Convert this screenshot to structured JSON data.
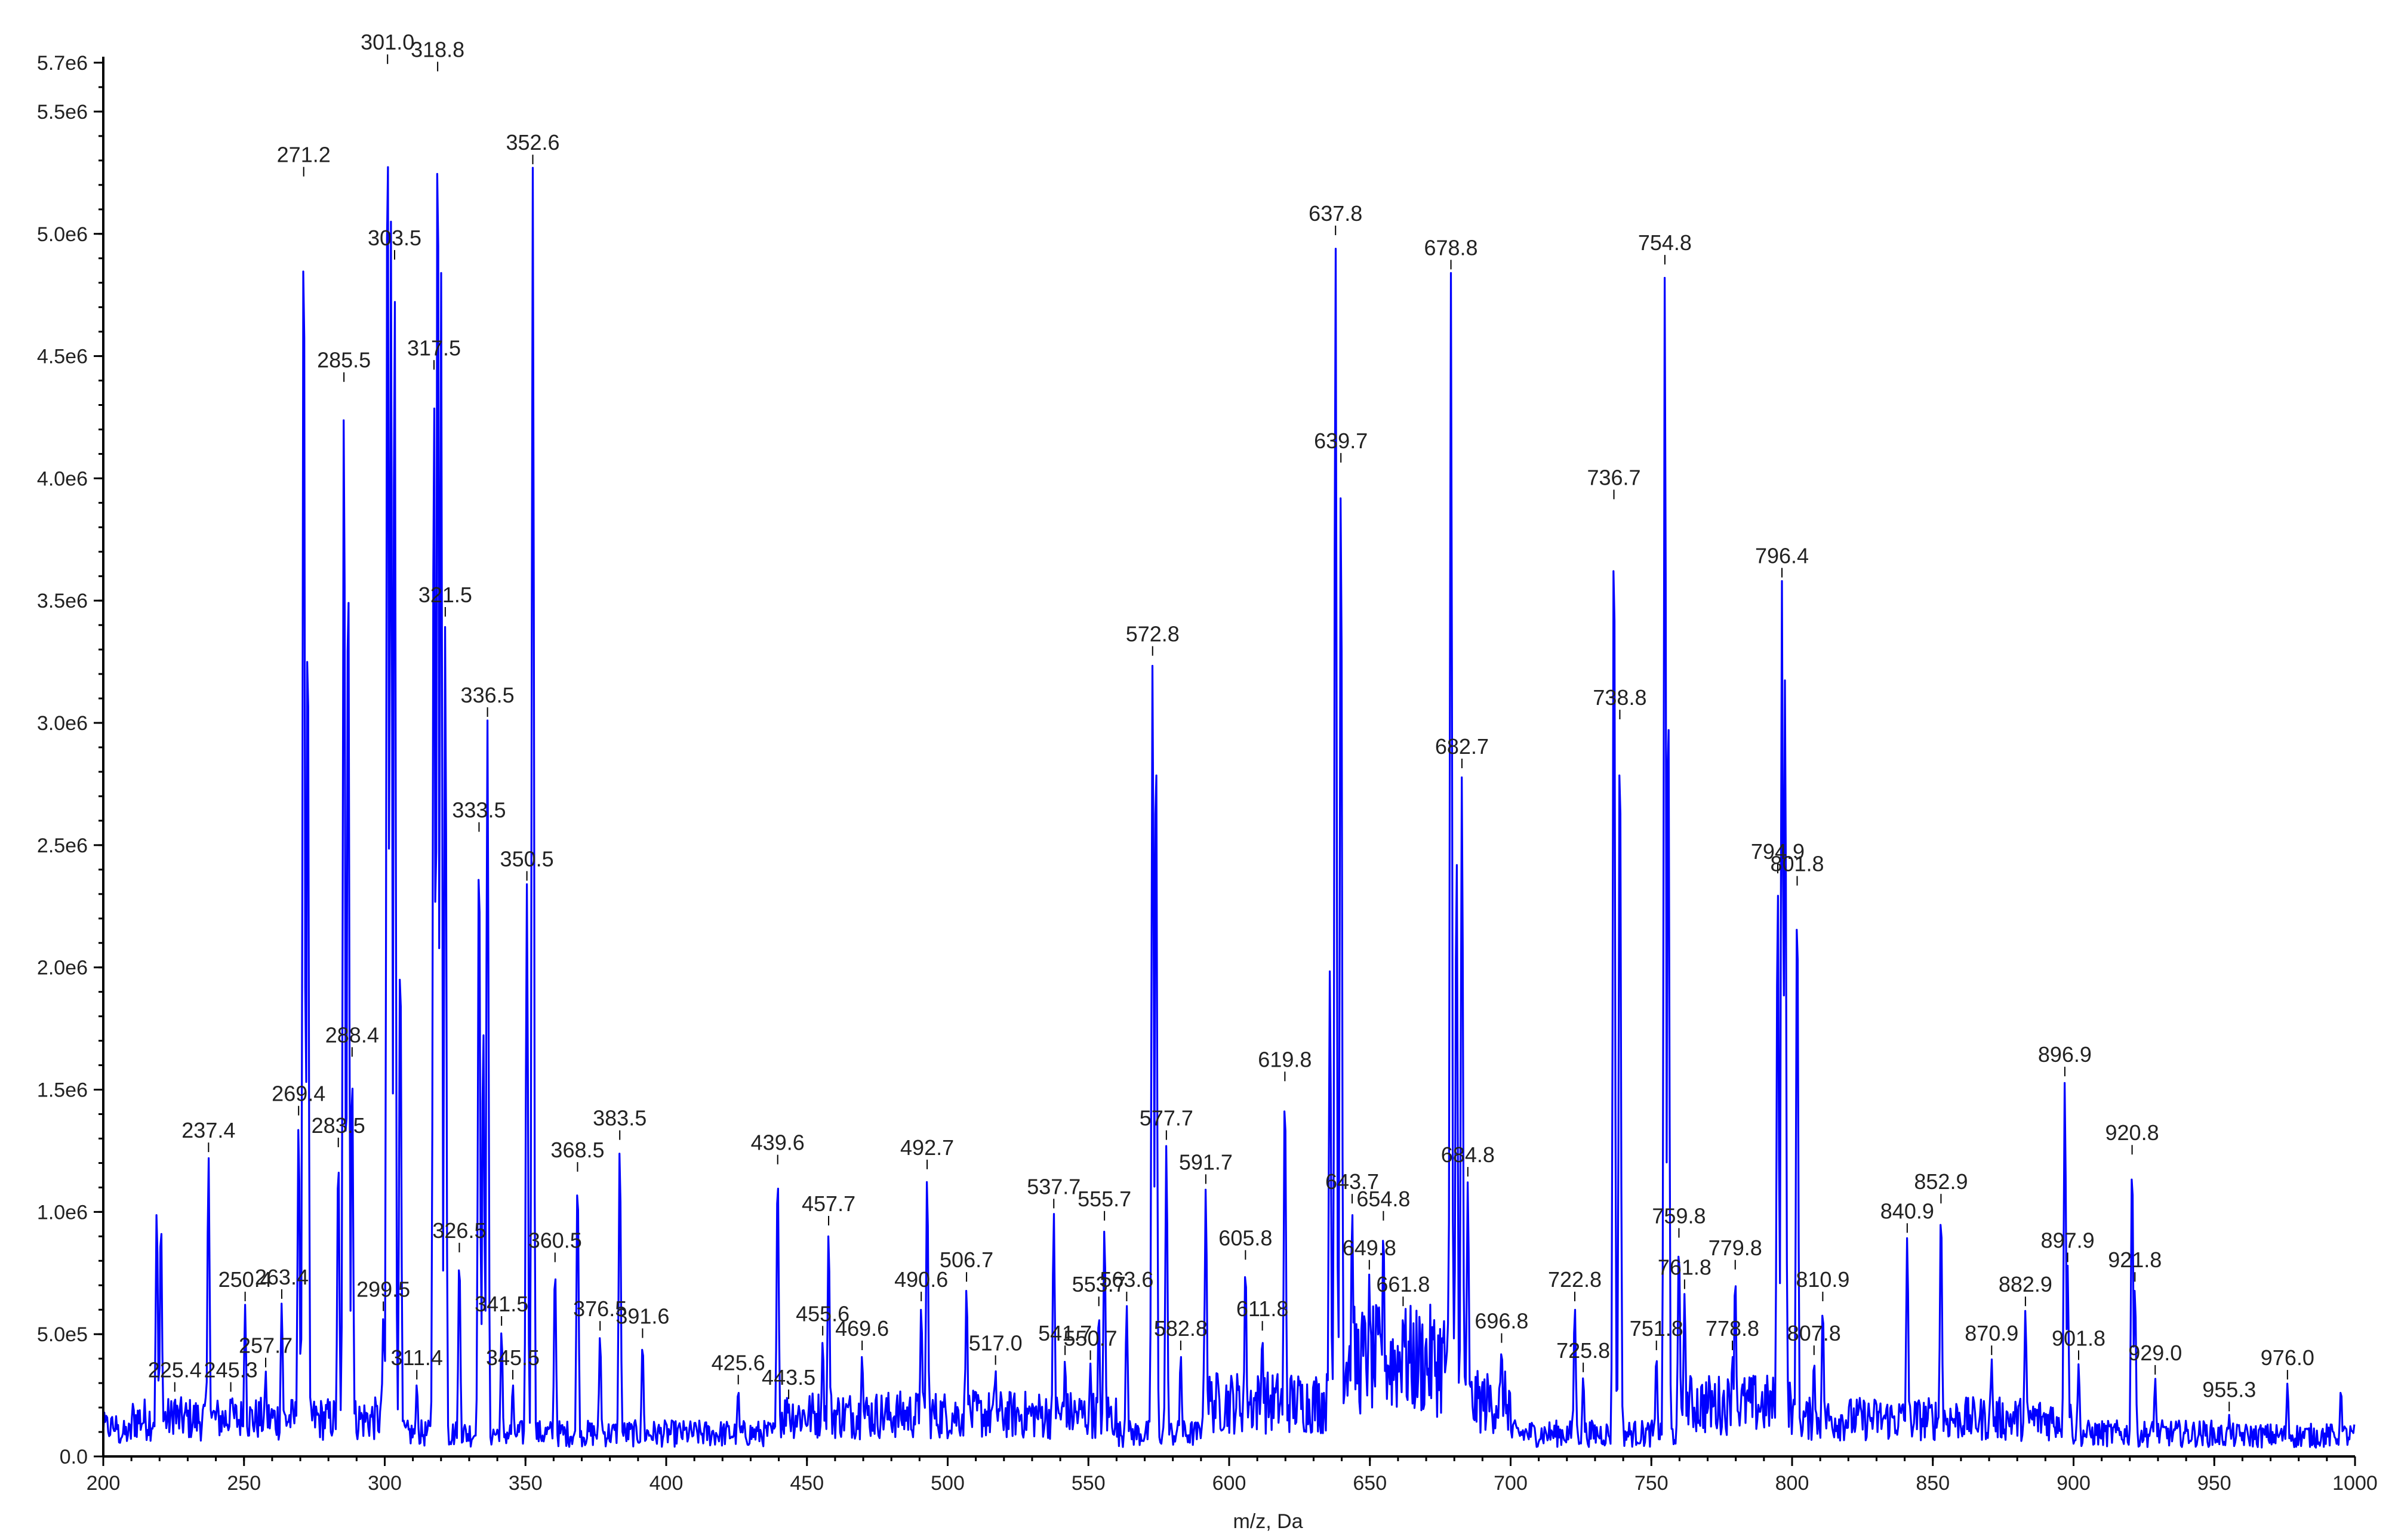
{
  "chart_data": {
    "type": "line",
    "title": "",
    "xlabel": "m/z, Da",
    "ylabel": "",
    "xlim": [
      200,
      1000
    ],
    "ylim": [
      0,
      5700000
    ],
    "grid": false,
    "legend": "none",
    "x_ticks": [
      "200",
      "250",
      "300",
      "350",
      "400",
      "450",
      "500",
      "550",
      "600",
      "650",
      "700",
      "750",
      "800",
      "850",
      "900",
      "950",
      "1000"
    ],
    "y_ticks": [
      "0.0",
      "5.0e5",
      "1.0e6",
      "1.5e6",
      "2.0e6",
      "2.5e6",
      "3.0e6",
      "3.5e6",
      "4.0e6",
      "4.5e6",
      "5.0e6",
      "5.5e6",
      "5.7e6"
    ],
    "series": [
      {
        "color": "#0000ff",
        "peaks": [
          {
            "x": 219.0,
            "y": 1020000,
            "label": ""
          },
          {
            "x": 220.5,
            "y": 980000,
            "label": ""
          },
          {
            "x": 225.4,
            "y": 250000,
            "label": "225.4"
          },
          {
            "x": 237.4,
            "y": 1230000,
            "label": "237.4"
          },
          {
            "x": 245.3,
            "y": 250000,
            "label": "245.3"
          },
          {
            "x": 250.4,
            "y": 620000,
            "label": "250.4"
          },
          {
            "x": 257.7,
            "y": 350000,
            "label": "257.7"
          },
          {
            "x": 263.4,
            "y": 630000,
            "label": "263.4"
          },
          {
            "x": 269.4,
            "y": 1380000,
            "label": "269.4"
          },
          {
            "x": 271.2,
            "y": 5220000,
            "label": "271.2"
          },
          {
            "x": 272.6,
            "y": 3500000,
            "label": ""
          },
          {
            "x": 283.5,
            "y": 1250000,
            "label": "283.5"
          },
          {
            "x": 285.5,
            "y": 4380000,
            "label": "285.5"
          },
          {
            "x": 287.0,
            "y": 3760000,
            "label": ""
          },
          {
            "x": 288.4,
            "y": 1620000,
            "label": "288.4"
          },
          {
            "x": 299.5,
            "y": 580000,
            "label": "299.5"
          },
          {
            "x": 301.0,
            "y": 5680000,
            "label": "301.0"
          },
          {
            "x": 302.2,
            "y": 5050000,
            "label": ""
          },
          {
            "x": 303.5,
            "y": 4880000,
            "label": "303.5"
          },
          {
            "x": 305.5,
            "y": 2100000,
            "label": ""
          },
          {
            "x": 311.4,
            "y": 300000,
            "label": "311.4"
          },
          {
            "x": 317.5,
            "y": 4430000,
            "label": "317.5"
          },
          {
            "x": 318.8,
            "y": 5650000,
            "label": "318.8"
          },
          {
            "x": 320.0,
            "y": 4880000,
            "label": ""
          },
          {
            "x": 321.5,
            "y": 3420000,
            "label": "321.5"
          },
          {
            "x": 326.5,
            "y": 820000,
            "label": "326.5"
          },
          {
            "x": 333.5,
            "y": 2540000,
            "label": "333.5"
          },
          {
            "x": 335.0,
            "y": 1780000,
            "label": ""
          },
          {
            "x": 336.5,
            "y": 3010000,
            "label": "336.5"
          },
          {
            "x": 341.5,
            "y": 520000,
            "label": "341.5"
          },
          {
            "x": 345.5,
            "y": 300000,
            "label": "345.5"
          },
          {
            "x": 350.5,
            "y": 2340000,
            "label": "350.5"
          },
          {
            "x": 352.6,
            "y": 5270000,
            "label": "352.6"
          },
          {
            "x": 360.5,
            "y": 780000,
            "label": "360.5"
          },
          {
            "x": 368.5,
            "y": 1150000,
            "label": "368.5"
          },
          {
            "x": 376.5,
            "y": 500000,
            "label": "376.5"
          },
          {
            "x": 383.5,
            "y": 1280000,
            "label": "383.5"
          },
          {
            "x": 391.6,
            "y": 470000,
            "label": "391.6"
          },
          {
            "x": 425.6,
            "y": 280000,
            "label": "425.6"
          },
          {
            "x": 439.6,
            "y": 1180000,
            "label": "439.6"
          },
          {
            "x": 443.5,
            "y": 220000,
            "label": "443.5"
          },
          {
            "x": 455.6,
            "y": 480000,
            "label": "455.6"
          },
          {
            "x": 457.7,
            "y": 930000,
            "label": "457.7"
          },
          {
            "x": 469.6,
            "y": 420000,
            "label": "469.6"
          },
          {
            "x": 490.6,
            "y": 620000,
            "label": "490.6"
          },
          {
            "x": 492.7,
            "y": 1160000,
            "label": "492.7"
          },
          {
            "x": 506.7,
            "y": 700000,
            "label": "506.7"
          },
          {
            "x": 517.0,
            "y": 360000,
            "label": "517.0"
          },
          {
            "x": 537.7,
            "y": 1000000,
            "label": "537.7"
          },
          {
            "x": 541.7,
            "y": 400000,
            "label": "541.7"
          },
          {
            "x": 550.7,
            "y": 380000,
            "label": "550.7"
          },
          {
            "x": 553.7,
            "y": 600000,
            "label": "553.7"
          },
          {
            "x": 555.7,
            "y": 950000,
            "label": "555.7"
          },
          {
            "x": 563.6,
            "y": 620000,
            "label": "563.6"
          },
          {
            "x": 572.8,
            "y": 3260000,
            "label": "572.8"
          },
          {
            "x": 574.0,
            "y": 3000000,
            "label": ""
          },
          {
            "x": 577.7,
            "y": 1280000,
            "label": "577.7"
          },
          {
            "x": 582.8,
            "y": 420000,
            "label": "582.8"
          },
          {
            "x": 591.7,
            "y": 1100000,
            "label": "591.7"
          },
          {
            "x": 605.8,
            "y": 790000,
            "label": "605.8"
          },
          {
            "x": 611.8,
            "y": 500000,
            "label": "611.8"
          },
          {
            "x": 619.8,
            "y": 1520000,
            "label": "619.8"
          },
          {
            "x": 635.8,
            "y": 2000000,
            "label": ""
          },
          {
            "x": 637.8,
            "y": 4980000,
            "label": "637.8"
          },
          {
            "x": 639.7,
            "y": 4050000,
            "label": "639.7"
          },
          {
            "x": 643.7,
            "y": 1020000,
            "label": "643.7"
          },
          {
            "x": 649.8,
            "y": 750000,
            "label": "649.8"
          },
          {
            "x": 654.8,
            "y": 950000,
            "label": "654.8"
          },
          {
            "x": 661.8,
            "y": 600000,
            "label": "661.8"
          },
          {
            "x": 678.8,
            "y": 4840000,
            "label": "678.8"
          },
          {
            "x": 680.8,
            "y": 2500000,
            "label": ""
          },
          {
            "x": 682.7,
            "y": 2800000,
            "label": "682.7"
          },
          {
            "x": 684.8,
            "y": 1130000,
            "label": "684.8"
          },
          {
            "x": 696.8,
            "y": 450000,
            "label": "696.8"
          },
          {
            "x": 722.8,
            "y": 620000,
            "label": "722.8"
          },
          {
            "x": 725.8,
            "y": 330000,
            "label": "725.8"
          },
          {
            "x": 736.7,
            "y": 3900000,
            "label": "736.7"
          },
          {
            "x": 738.8,
            "y": 3000000,
            "label": "738.8"
          },
          {
            "x": 751.8,
            "y": 420000,
            "label": "751.8"
          },
          {
            "x": 754.8,
            "y": 4860000,
            "label": "754.8"
          },
          {
            "x": 756.0,
            "y": 3200000,
            "label": ""
          },
          {
            "x": 759.8,
            "y": 880000,
            "label": "759.8"
          },
          {
            "x": 761.8,
            "y": 670000,
            "label": "761.8"
          },
          {
            "x": 778.8,
            "y": 420000,
            "label": "778.8"
          },
          {
            "x": 779.8,
            "y": 750000,
            "label": "779.8"
          },
          {
            "x": 794.9,
            "y": 2370000,
            "label": "794.9"
          },
          {
            "x": 796.4,
            "y": 3580000,
            "label": "796.4"
          },
          {
            "x": 797.5,
            "y": 3200000,
            "label": ""
          },
          {
            "x": 801.8,
            "y": 2320000,
            "label": "801.8"
          },
          {
            "x": 807.8,
            "y": 400000,
            "label": "807.8"
          },
          {
            "x": 810.9,
            "y": 620000,
            "label": "810.9"
          },
          {
            "x": 840.9,
            "y": 900000,
            "label": "840.9"
          },
          {
            "x": 852.9,
            "y": 1020000,
            "label": "852.9"
          },
          {
            "x": 870.9,
            "y": 400000,
            "label": "870.9"
          },
          {
            "x": 882.9,
            "y": 600000,
            "label": "882.9"
          },
          {
            "x": 896.9,
            "y": 1540000,
            "label": "896.9"
          },
          {
            "x": 897.9,
            "y": 780000,
            "label": "897.9"
          },
          {
            "x": 901.8,
            "y": 380000,
            "label": "901.8"
          },
          {
            "x": 920.8,
            "y": 1220000,
            "label": "920.8"
          },
          {
            "x": 921.8,
            "y": 700000,
            "label": "921.8"
          },
          {
            "x": 929.0,
            "y": 320000,
            "label": "929.0"
          },
          {
            "x": 955.3,
            "y": 170000,
            "label": "955.3"
          },
          {
            "x": 976.0,
            "y": 300000,
            "label": "976.0"
          },
          {
            "x": 995.0,
            "y": 280000,
            "label": ""
          }
        ]
      }
    ]
  }
}
